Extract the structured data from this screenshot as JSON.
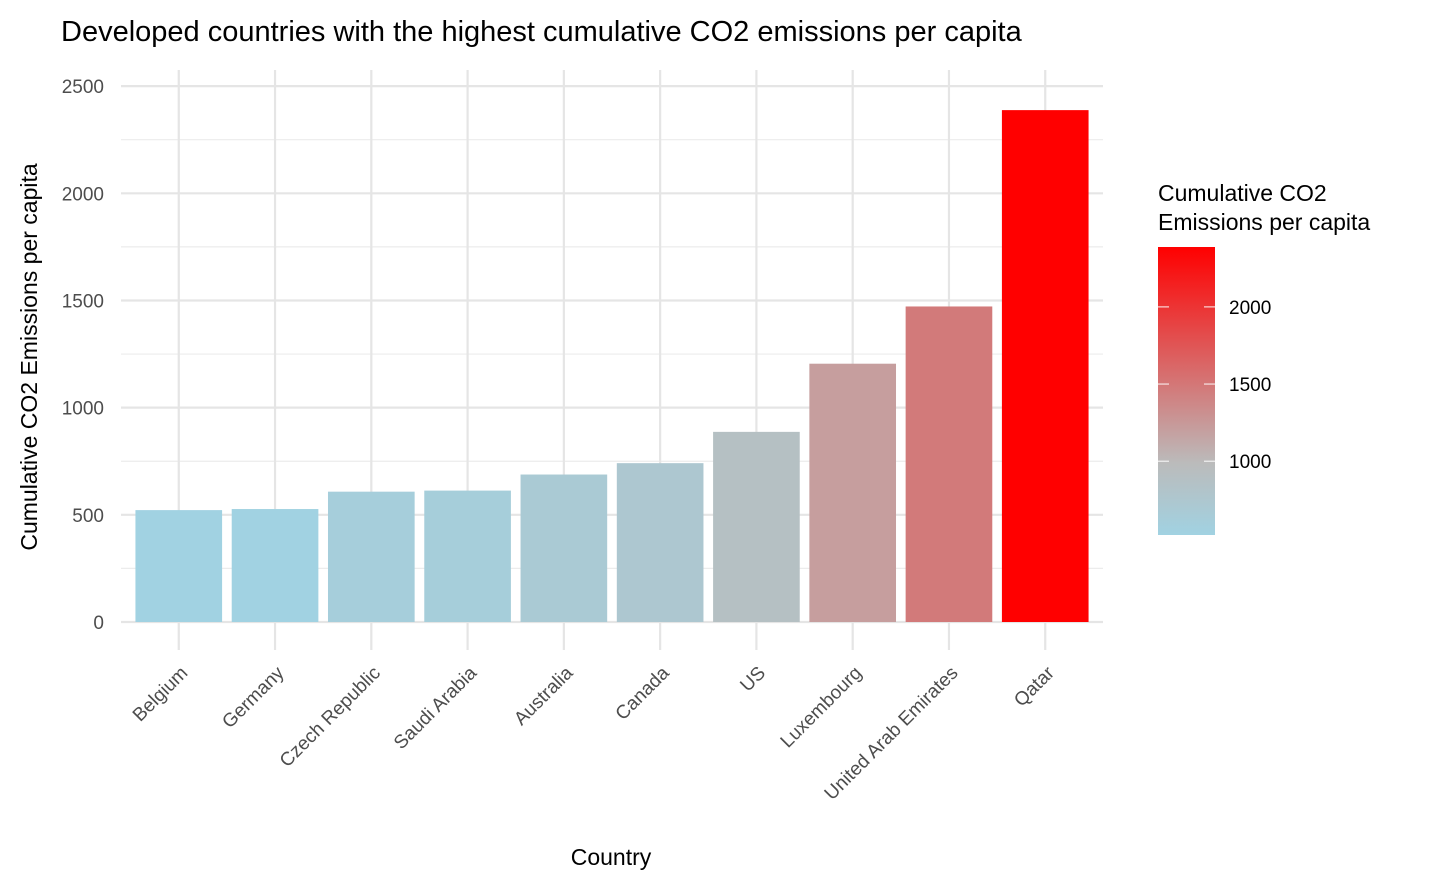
{
  "chart_data": {
    "type": "bar",
    "title": "Developed countries with the highest cumulative CO2 emissions per capita",
    "xlabel": "Country",
    "ylabel": "Cumulative CO2 Emissions per capita",
    "categories": [
      "Belgium",
      "Germany",
      "Czech Republic",
      "Saudi Arabia",
      "Australia",
      "Canada",
      "US",
      "Luxembourg",
      "United Arab Emirates",
      "Qatar"
    ],
    "values": [
      522,
      527,
      608,
      613,
      688,
      741,
      887,
      1205,
      1472,
      2388
    ],
    "ylim": [
      0,
      2500
    ],
    "y_ticks": [
      0,
      500,
      1000,
      1500,
      2000,
      2500
    ],
    "grid": true,
    "legend": {
      "title_lines": [
        "Cumulative CO2",
        "Emissions per capita"
      ],
      "ticks": [
        1000,
        1500,
        2000
      ],
      "range": [
        522,
        2388
      ],
      "color_low": "#a1d2e2",
      "color_mid": "#bbbbbb",
      "color_high": "#ff0000",
      "placement": "right"
    }
  }
}
